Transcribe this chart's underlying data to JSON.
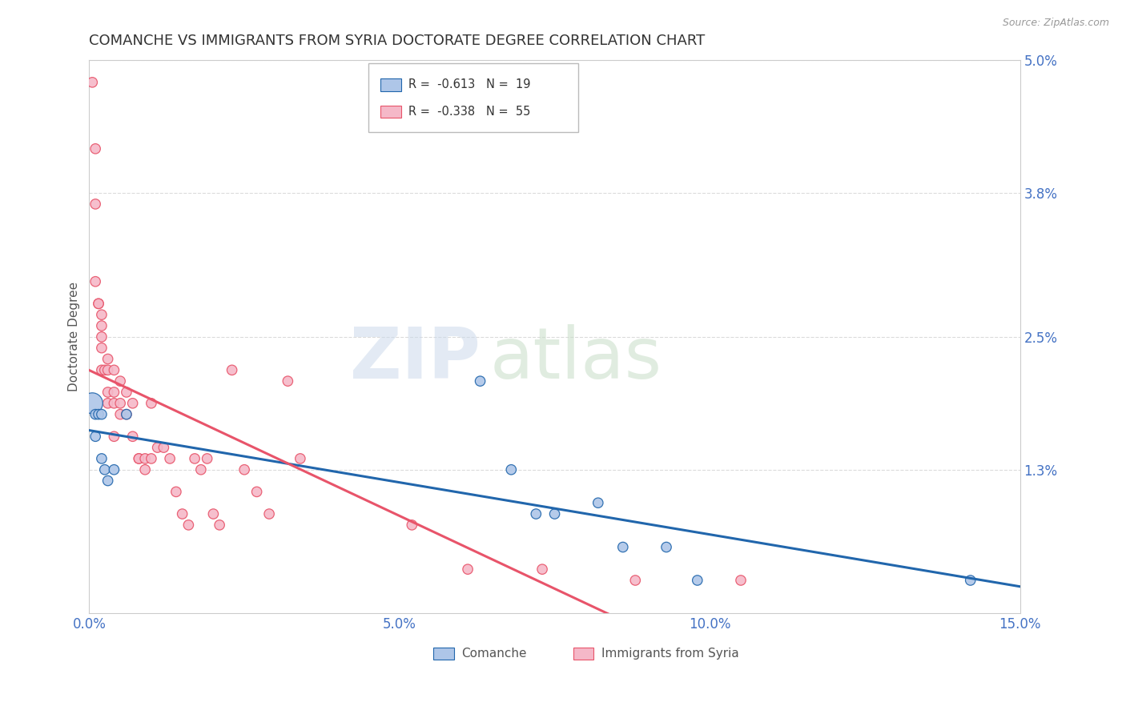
{
  "title": "COMANCHE VS IMMIGRANTS FROM SYRIA DOCTORATE DEGREE CORRELATION CHART",
  "source": "Source: ZipAtlas.com",
  "ylabel": "Doctorate Degree",
  "xlim": [
    0.0,
    0.15
  ],
  "ylim": [
    0.0,
    0.05
  ],
  "xticks": [
    0.0,
    0.05,
    0.1,
    0.15
  ],
  "xticklabels": [
    "0.0%",
    "5.0%",
    "10.0%",
    "15.0%"
  ],
  "yticks_right": [
    0.013,
    0.025,
    0.038,
    0.05
  ],
  "yticklabels_right": [
    "1.3%",
    "2.5%",
    "3.8%",
    "5.0%"
  ],
  "comanche_color": "#aec6e8",
  "syria_color": "#f5b8c8",
  "comanche_line_color": "#2166ac",
  "syria_line_color": "#e8546a",
  "legend_r_comanche": "-0.613",
  "legend_n_comanche": "19",
  "legend_r_syria": "-0.338",
  "legend_n_syria": "55",
  "comanche_x": [
    0.0005,
    0.001,
    0.001,
    0.0015,
    0.002,
    0.002,
    0.0025,
    0.003,
    0.004,
    0.006,
    0.063,
    0.068,
    0.072,
    0.075,
    0.082,
    0.086,
    0.093,
    0.098,
    0.142
  ],
  "comanche_y": [
    0.019,
    0.018,
    0.016,
    0.018,
    0.018,
    0.014,
    0.013,
    0.012,
    0.013,
    0.018,
    0.021,
    0.013,
    0.009,
    0.009,
    0.01,
    0.006,
    0.006,
    0.003,
    0.003
  ],
  "comanche_size": [
    350,
    80,
    80,
    80,
    80,
    80,
    80,
    80,
    80,
    80,
    80,
    80,
    80,
    80,
    80,
    80,
    80,
    80,
    80
  ],
  "syria_x": [
    0.0005,
    0.001,
    0.001,
    0.001,
    0.0015,
    0.0015,
    0.002,
    0.002,
    0.002,
    0.002,
    0.002,
    0.0025,
    0.003,
    0.003,
    0.003,
    0.003,
    0.004,
    0.004,
    0.004,
    0.004,
    0.005,
    0.005,
    0.005,
    0.006,
    0.006,
    0.007,
    0.007,
    0.008,
    0.008,
    0.009,
    0.009,
    0.01,
    0.01,
    0.011,
    0.012,
    0.013,
    0.014,
    0.015,
    0.016,
    0.017,
    0.018,
    0.019,
    0.02,
    0.021,
    0.023,
    0.025,
    0.027,
    0.029,
    0.032,
    0.034,
    0.052,
    0.061,
    0.073,
    0.088,
    0.105
  ],
  "syria_y": [
    0.048,
    0.042,
    0.037,
    0.03,
    0.028,
    0.028,
    0.027,
    0.026,
    0.025,
    0.024,
    0.022,
    0.022,
    0.023,
    0.022,
    0.02,
    0.019,
    0.022,
    0.02,
    0.019,
    0.016,
    0.021,
    0.019,
    0.018,
    0.02,
    0.018,
    0.019,
    0.016,
    0.014,
    0.014,
    0.014,
    0.013,
    0.019,
    0.014,
    0.015,
    0.015,
    0.014,
    0.011,
    0.009,
    0.008,
    0.014,
    0.013,
    0.014,
    0.009,
    0.008,
    0.022,
    0.013,
    0.011,
    0.009,
    0.021,
    0.014,
    0.008,
    0.004,
    0.004,
    0.003,
    0.003
  ],
  "syria_size": [
    80,
    80,
    80,
    80,
    80,
    80,
    80,
    80,
    80,
    80,
    80,
    80,
    80,
    80,
    80,
    80,
    80,
    80,
    80,
    80,
    80,
    80,
    80,
    80,
    80,
    80,
    80,
    80,
    80,
    80,
    80,
    80,
    80,
    80,
    80,
    80,
    80,
    80,
    80,
    80,
    80,
    80,
    80,
    80,
    80,
    80,
    80,
    80,
    80,
    80,
    80,
    80,
    80,
    80,
    80
  ],
  "background_color": "#ffffff",
  "grid_color": "#cccccc",
  "title_fontsize": 13,
  "axis_fontsize": 11,
  "tick_fontsize": 12
}
